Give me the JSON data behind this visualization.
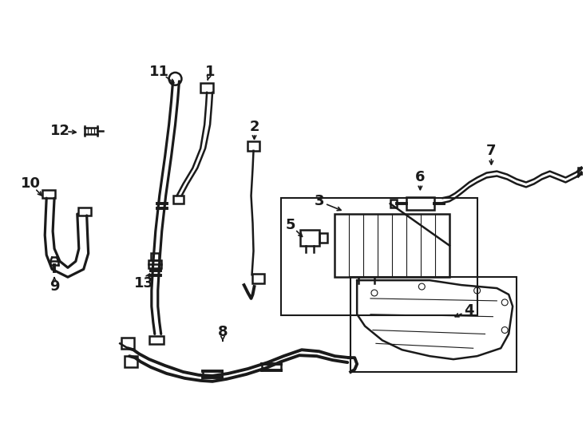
{
  "background_color": "#ffffff",
  "line_color": "#1a1a1a",
  "lw": 1.8
}
